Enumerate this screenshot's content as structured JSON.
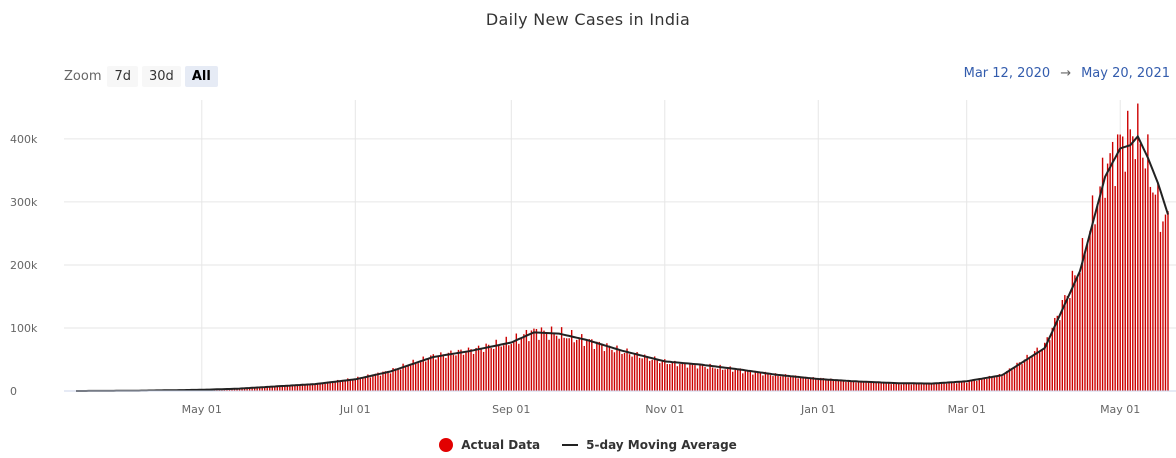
{
  "zoom": {
    "label": "Zoom",
    "buttons": [
      "7d",
      "30d",
      "All"
    ],
    "active": "All"
  },
  "range": {
    "start": "Mar 12, 2020",
    "arrow": "→",
    "end": "May 20, 2021"
  },
  "chart_data": {
    "type": "bar",
    "title": "Daily New Cases in India",
    "xlabel": "",
    "ylabel": "",
    "ylim": [
      0,
      430000
    ],
    "yticks": [
      "0",
      "100k",
      "200k",
      "300k",
      "400k"
    ],
    "xticks": [
      "May 01",
      "Jul 01",
      "Sep 01",
      "Nov 01",
      "Jan 01",
      "Mar 01",
      "May 01"
    ],
    "xrange": [
      "2020-03-12",
      "2021-05-20"
    ],
    "grid": true,
    "legend_position": "bottom",
    "colors": {
      "bars": "#cc0000",
      "line": "#222222"
    },
    "series": [
      {
        "name": "Actual Data",
        "type": "bar",
        "color": "#cc0000",
        "points": [
          [
            "2020-03-12",
            10
          ],
          [
            "2020-04-01",
            400
          ],
          [
            "2020-04-15",
            1100
          ],
          [
            "2020-05-01",
            2000
          ],
          [
            "2020-05-15",
            3800
          ],
          [
            "2020-06-01",
            8000
          ],
          [
            "2020-06-15",
            11500
          ],
          [
            "2020-07-01",
            19000
          ],
          [
            "2020-07-15",
            32000
          ],
          [
            "2020-08-01",
            55000
          ],
          [
            "2020-08-15",
            64000
          ],
          [
            "2020-09-01",
            78000
          ],
          [
            "2020-09-10",
            95000
          ],
          [
            "2020-09-20",
            90000
          ],
          [
            "2020-10-01",
            80000
          ],
          [
            "2020-10-15",
            63000
          ],
          [
            "2020-11-01",
            46000
          ],
          [
            "2020-11-15",
            40000
          ],
          [
            "2020-12-01",
            33000
          ],
          [
            "2020-12-15",
            25000
          ],
          [
            "2021-01-01",
            20000
          ],
          [
            "2021-01-15",
            15000
          ],
          [
            "2021-02-01",
            12000
          ],
          [
            "2021-02-15",
            11500
          ],
          [
            "2021-03-01",
            15000
          ],
          [
            "2021-03-15",
            25000
          ],
          [
            "2021-04-01",
            72000
          ],
          [
            "2021-04-15",
            200000
          ],
          [
            "2021-04-25",
            350000
          ],
          [
            "2021-05-01",
            392000
          ],
          [
            "2021-05-06",
            412000
          ],
          [
            "2021-05-09",
            400000
          ],
          [
            "2021-05-13",
            345000
          ],
          [
            "2021-05-17",
            280000
          ],
          [
            "2021-05-20",
            265000
          ]
        ]
      },
      {
        "name": "5-day Moving Average",
        "type": "line",
        "color": "#222222",
        "points": [
          [
            "2020-03-12",
            10
          ],
          [
            "2020-04-01",
            300
          ],
          [
            "2020-04-15",
            1000
          ],
          [
            "2020-05-01",
            1900
          ],
          [
            "2020-05-15",
            3600
          ],
          [
            "2020-06-01",
            7700
          ],
          [
            "2020-06-15",
            11000
          ],
          [
            "2020-07-01",
            18500
          ],
          [
            "2020-07-15",
            31000
          ],
          [
            "2020-08-01",
            54000
          ],
          [
            "2020-08-15",
            63000
          ],
          [
            "2020-09-01",
            77000
          ],
          [
            "2020-09-10",
            93000
          ],
          [
            "2020-09-20",
            91000
          ],
          [
            "2020-10-01",
            81000
          ],
          [
            "2020-10-15",
            64000
          ],
          [
            "2020-11-01",
            47000
          ],
          [
            "2020-11-15",
            42000
          ],
          [
            "2020-12-01",
            34000
          ],
          [
            "2020-12-15",
            26000
          ],
          [
            "2021-01-01",
            19000
          ],
          [
            "2021-01-15",
            15500
          ],
          [
            "2021-02-01",
            12500
          ],
          [
            "2021-02-15",
            11800
          ],
          [
            "2021-03-01",
            15500
          ],
          [
            "2021-03-15",
            25000
          ],
          [
            "2021-04-01",
            68000
          ],
          [
            "2021-04-15",
            190000
          ],
          [
            "2021-04-25",
            340000
          ],
          [
            "2021-05-01",
            385000
          ],
          [
            "2021-05-05",
            390000
          ],
          [
            "2021-05-08",
            404000
          ],
          [
            "2021-05-12",
            370000
          ],
          [
            "2021-05-16",
            330000
          ],
          [
            "2021-05-20",
            280000
          ]
        ]
      }
    ]
  }
}
